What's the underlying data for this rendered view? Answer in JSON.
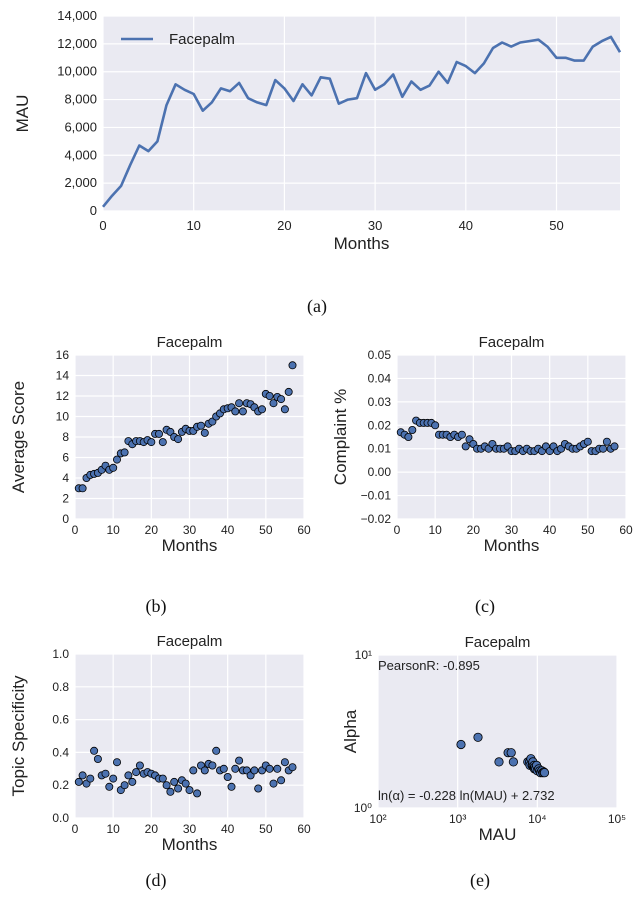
{
  "colors": {
    "bg": "#eaeaf2",
    "grid": "#ffffff",
    "line": "#4c72b0",
    "point": "#4c72b0",
    "edge": "#000000"
  },
  "chart_data": [
    {
      "type": "line",
      "caption": "(a)",
      "title": "",
      "xlabel": "Months",
      "ylabel": "MAU",
      "xlim": [
        0,
        57
      ],
      "ylim": [
        0,
        14000
      ],
      "xticks": [
        "0",
        "10",
        "20",
        "30",
        "40",
        "50"
      ],
      "yticks": [
        "0",
        "2,000",
        "4,000",
        "6,000",
        "8,000",
        "10,000",
        "12,000",
        "14,000"
      ],
      "legend": "top-left",
      "series": [
        {
          "name": "Facepalm",
          "x": [
            0,
            1,
            2,
            3,
            4,
            5,
            6,
            7,
            8,
            9,
            10,
            11,
            12,
            13,
            14,
            15,
            16,
            17,
            18,
            19,
            20,
            21,
            22,
            23,
            24,
            25,
            26,
            27,
            28,
            29,
            30,
            31,
            32,
            33,
            34,
            35,
            36,
            37,
            38,
            39,
            40,
            41,
            42,
            43,
            44,
            45,
            46,
            47,
            48,
            49,
            50,
            51,
            52,
            53,
            54,
            55,
            56,
            57
          ],
          "y": [
            300,
            1100,
            1800,
            3300,
            4700,
            4300,
            5000,
            7600,
            9100,
            8700,
            8400,
            7200,
            7800,
            8800,
            8600,
            9200,
            8100,
            7800,
            7600,
            9400,
            8800,
            7900,
            9100,
            8300,
            9600,
            9500,
            7700,
            8000,
            8100,
            9900,
            8700,
            9100,
            9800,
            8200,
            9300,
            8700,
            9000,
            10000,
            9200,
            10700,
            10400,
            9900,
            10600,
            11700,
            12100,
            11800,
            12100,
            12200,
            12300,
            11800,
            11000,
            11000,
            10800,
            10800,
            11800,
            12200,
            12500,
            11400
          ]
        }
      ]
    },
    {
      "type": "scatter",
      "caption": "(b)",
      "title": "Facepalm",
      "xlabel": "Months",
      "ylabel": "Average Score",
      "xlim": [
        0,
        60
      ],
      "ylim": [
        0,
        16
      ],
      "xticks": [
        "0",
        "10",
        "20",
        "30",
        "40",
        "50",
        "60"
      ],
      "yticks": [
        "0",
        "2",
        "4",
        "6",
        "8",
        "10",
        "12",
        "14",
        "16"
      ],
      "series": [
        {
          "x": [
            1,
            2,
            3,
            4,
            5,
            6,
            7,
            8,
            9,
            10,
            11,
            12,
            13,
            14,
            15,
            16,
            17,
            18,
            19,
            20,
            21,
            22,
            23,
            24,
            25,
            26,
            27,
            28,
            29,
            30,
            31,
            32,
            33,
            34,
            35,
            36,
            37,
            38,
            39,
            40,
            41,
            42,
            43,
            44,
            45,
            46,
            47,
            48,
            49,
            50,
            51,
            52,
            53,
            54,
            55,
            56,
            57
          ],
          "y": [
            3.0,
            3.0,
            4.0,
            4.3,
            4.4,
            4.5,
            4.8,
            5.2,
            4.8,
            5.0,
            5.8,
            6.4,
            6.5,
            7.6,
            7.3,
            7.6,
            7.6,
            7.5,
            7.7,
            7.5,
            8.3,
            8.3,
            7.5,
            8.7,
            8.5,
            8.0,
            7.8,
            8.5,
            8.8,
            8.6,
            8.6,
            9.0,
            9.1,
            8.4,
            9.3,
            9.5,
            10.0,
            10.3,
            10.7,
            10.8,
            10.9,
            10.5,
            11.3,
            10.5,
            11.3,
            11.2,
            10.9,
            10.5,
            10.7,
            12.2,
            12.0,
            11.3,
            11.9,
            11.7,
            10.7,
            12.4,
            15.0
          ]
        }
      ]
    },
    {
      "type": "scatter",
      "caption": "(c)",
      "title": "Facepalm",
      "xlabel": "Months",
      "ylabel": "Complaint %",
      "xlim": [
        0,
        60
      ],
      "ylim": [
        -0.02,
        0.05
      ],
      "xticks": [
        "0",
        "10",
        "20",
        "30",
        "40",
        "50",
        "60"
      ],
      "yticks": [
        "−0.02",
        "−0.01",
        "0.00",
        "0.01",
        "0.02",
        "0.03",
        "0.04",
        "0.05"
      ],
      "series": [
        {
          "x": [
            1,
            2,
            3,
            4,
            5,
            6,
            7,
            8,
            9,
            10,
            11,
            12,
            13,
            14,
            15,
            16,
            17,
            18,
            19,
            20,
            21,
            22,
            23,
            24,
            25,
            26,
            27,
            28,
            29,
            30,
            31,
            32,
            33,
            34,
            35,
            36,
            37,
            38,
            39,
            40,
            41,
            42,
            43,
            44,
            45,
            46,
            47,
            48,
            49,
            50,
            51,
            52,
            53,
            54,
            55,
            56,
            57
          ],
          "y": [
            0.017,
            0.016,
            0.015,
            0.018,
            0.022,
            0.021,
            0.021,
            0.021,
            0.021,
            0.02,
            0.016,
            0.016,
            0.016,
            0.015,
            0.016,
            0.015,
            0.016,
            0.011,
            0.014,
            0.012,
            0.01,
            0.01,
            0.011,
            0.01,
            0.012,
            0.01,
            0.01,
            0.01,
            0.011,
            0.009,
            0.009,
            0.01,
            0.009,
            0.01,
            0.009,
            0.009,
            0.01,
            0.009,
            0.011,
            0.009,
            0.011,
            0.009,
            0.01,
            0.012,
            0.011,
            0.01,
            0.01,
            0.011,
            0.012,
            0.013,
            0.009,
            0.009,
            0.01,
            0.01,
            0.013,
            0.01,
            0.011
          ]
        }
      ]
    },
    {
      "type": "scatter",
      "caption": "(d)",
      "title": "Facepalm",
      "xlabel": "Months",
      "ylabel": "Topic Specificity",
      "xlim": [
        0,
        60
      ],
      "ylim": [
        0.0,
        1.0
      ],
      "xticks": [
        "0",
        "10",
        "20",
        "30",
        "40",
        "50",
        "60"
      ],
      "yticks": [
        "0.0",
        "0.2",
        "0.4",
        "0.6",
        "0.8",
        "1.0"
      ],
      "series": [
        {
          "x": [
            1,
            2,
            3,
            4,
            5,
            6,
            7,
            8,
            9,
            10,
            11,
            12,
            13,
            14,
            15,
            16,
            17,
            18,
            19,
            20,
            21,
            22,
            23,
            24,
            25,
            26,
            27,
            28,
            29,
            30,
            31,
            32,
            33,
            34,
            35,
            36,
            37,
            38,
            39,
            40,
            41,
            42,
            43,
            44,
            45,
            46,
            47,
            48,
            49,
            50,
            51,
            52,
            53,
            54,
            55,
            56,
            57
          ],
          "y": [
            0.22,
            0.26,
            0.21,
            0.24,
            0.41,
            0.36,
            0.26,
            0.27,
            0.19,
            0.24,
            0.34,
            0.17,
            0.2,
            0.26,
            0.22,
            0.28,
            0.32,
            0.27,
            0.28,
            0.27,
            0.26,
            0.24,
            0.24,
            0.2,
            0.16,
            0.22,
            0.18,
            0.23,
            0.21,
            0.17,
            0.29,
            0.15,
            0.32,
            0.29,
            0.33,
            0.32,
            0.41,
            0.29,
            0.3,
            0.25,
            0.19,
            0.3,
            0.35,
            0.29,
            0.29,
            0.26,
            0.29,
            0.18,
            0.29,
            0.32,
            0.3,
            0.21,
            0.3,
            0.23,
            0.34,
            0.29,
            0.31
          ]
        }
      ]
    },
    {
      "type": "scatter",
      "caption": "(e)",
      "title": "Facepalm",
      "xlabel": "MAU",
      "ylabel": "Alpha",
      "xscale": "log",
      "yscale": "log",
      "xlim": [
        100,
        100000
      ],
      "ylim": [
        1,
        10
      ],
      "xticks": [
        "10²",
        "10³",
        "10⁴",
        "10⁵"
      ],
      "yticks": [
        "10⁰",
        "10¹"
      ],
      "annotations": [
        "PearsonR: -0.895",
        "ln(α) = -0.228 ln(MAU) + 2.732"
      ],
      "series": [
        {
          "x": [
            1100,
            1800,
            3300,
            4300,
            4700,
            5000,
            7600,
            8000,
            8100,
            8300,
            8600,
            8700,
            8800,
            9000,
            9100,
            9200,
            9300,
            9500,
            9800,
            10000,
            10400,
            10700,
            11000,
            11400,
            11700,
            12100,
            12300
          ],
          "y": [
            2.6,
            2.9,
            2.0,
            2.3,
            2.3,
            2.0,
            2.0,
            2.0,
            1.9,
            2.1,
            1.9,
            1.9,
            2.0,
            1.85,
            1.9,
            1.8,
            1.85,
            1.8,
            1.9,
            1.75,
            1.8,
            1.75,
            1.7,
            1.75,
            1.7,
            1.72,
            1.7
          ]
        }
      ]
    }
  ]
}
